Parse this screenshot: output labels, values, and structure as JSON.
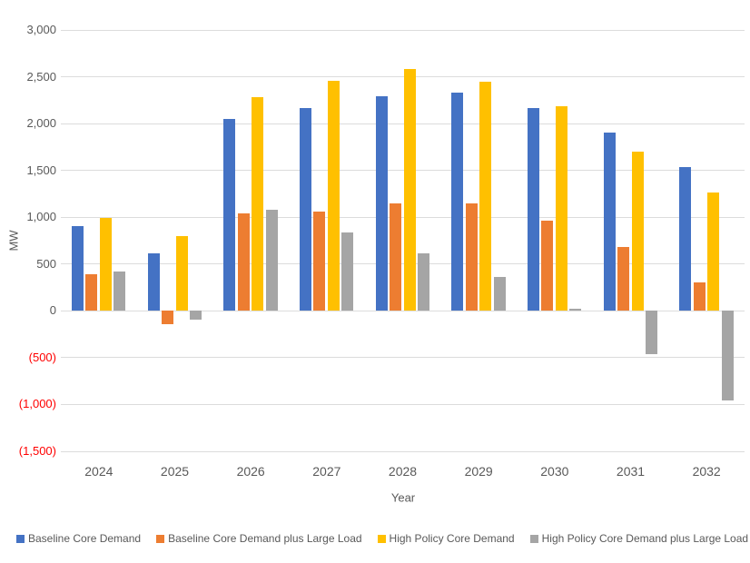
{
  "chart_data": {
    "type": "bar",
    "title": "",
    "xlabel": "Year",
    "ylabel": "MW",
    "categories": [
      "2024",
      "2025",
      "2026",
      "2027",
      "2028",
      "2029",
      "2030",
      "2031",
      "2032"
    ],
    "series": [
      {
        "name": "Baseline Core Demand",
        "color": "#4472C4",
        "values": [
          910,
          610,
          2050,
          2170,
          2290,
          2330,
          2170,
          1900,
          1540
        ]
      },
      {
        "name": "Baseline Core Demand plus Large Load",
        "color": "#ED7D31",
        "values": [
          390,
          -140,
          1040,
          1060,
          1150,
          1150,
          960,
          680,
          300
        ]
      },
      {
        "name": "High Policy Core Demand",
        "color": "#FFC000",
        "values": [
          990,
          800,
          2280,
          2460,
          2580,
          2450,
          2190,
          1700,
          1260
        ]
      },
      {
        "name": "High Policy Core Demand plus Large Load",
        "color": "#A5A5A5",
        "values": [
          420,
          -90,
          1080,
          840,
          610,
          360,
          20,
          -460,
          -960
        ]
      }
    ],
    "ylim": [
      -1500,
      3000
    ],
    "yticks": [
      {
        "value": 3000,
        "label": "3,000"
      },
      {
        "value": 2500,
        "label": "2,500"
      },
      {
        "value": 2000,
        "label": "2,000"
      },
      {
        "value": 1500,
        "label": "1,500"
      },
      {
        "value": 1000,
        "label": "1,000"
      },
      {
        "value": 500,
        "label": "500"
      },
      {
        "value": 0,
        "label": "0"
      },
      {
        "value": -500,
        "label": "(500)"
      },
      {
        "value": -1000,
        "label": "(1,000)"
      },
      {
        "value": -1500,
        "label": "(1,500)"
      }
    ],
    "grid": true,
    "legend_position": "bottom",
    "colors": {
      "axis_text": "#595959",
      "negative_tick": "#FF0000",
      "gridline": "#DCDCDC",
      "background": "#FFFFFF"
    }
  }
}
